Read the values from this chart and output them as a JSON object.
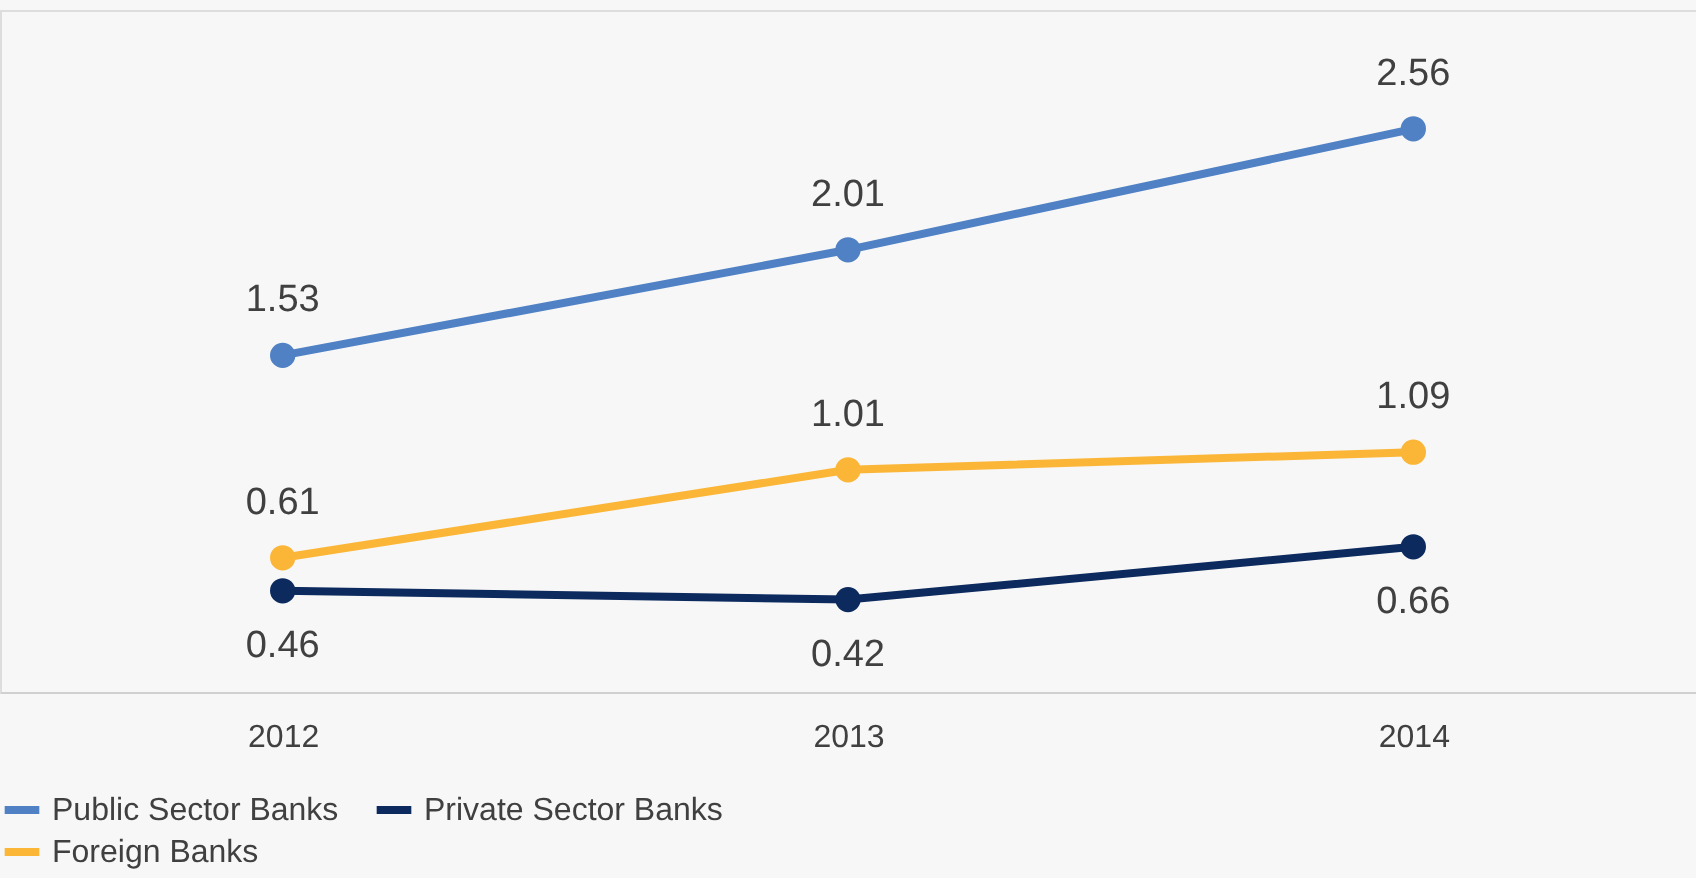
{
  "chart_data": {
    "type": "line",
    "categories": [
      "2012",
      "2013",
      "2014"
    ],
    "series": [
      {
        "name": "Public Sector Banks",
        "color": "#4f81c4",
        "values": [
          1.53,
          2.01,
          2.56
        ]
      },
      {
        "name": "Private Sector Banks",
        "color": "#0c2a5e",
        "values": [
          0.46,
          0.42,
          0.66
        ]
      },
      {
        "name": "Foreign Banks",
        "color": "#fbb637",
        "values": [
          0.61,
          1.01,
          1.09
        ]
      }
    ],
    "ylim": [
      0,
      3.1
    ],
    "tick_labels": "x",
    "data_labels": true,
    "legend": "bottom",
    "marker": "circle",
    "line_style": "solid",
    "grid": false
  }
}
